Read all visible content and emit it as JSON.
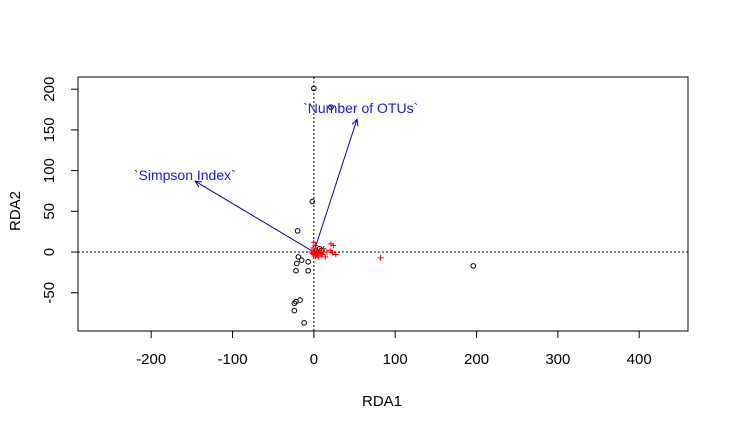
{
  "chart_data": {
    "type": "scatter",
    "title": "",
    "xlabel": "RDA1",
    "ylabel": "RDA2",
    "xlim": [
      -290,
      460
    ],
    "ylim": [
      -97,
      215
    ],
    "x_ticks": [
      -200,
      -100,
      0,
      100,
      200,
      300,
      400
    ],
    "y_ticks": [
      -50,
      0,
      50,
      100,
      150,
      200
    ],
    "x_tick_labels": [
      "-200",
      "-100",
      "0",
      "100",
      "200",
      "300",
      "400"
    ],
    "y_tick_labels": [
      "-50",
      "0",
      "50",
      "100",
      "150",
      "200"
    ],
    "reference_lines": {
      "x": 0,
      "y": 0,
      "style": "dotted"
    },
    "grid": false,
    "site_points": {
      "marker": "open-circle",
      "color": "#000000",
      "points": [
        [
          0,
          201
        ],
        [
          21,
          178
        ],
        [
          -2,
          62
        ],
        [
          -20,
          26
        ],
        [
          -19,
          -6
        ],
        [
          -15,
          -10
        ],
        [
          -7,
          -12
        ],
        [
          -21,
          -14
        ],
        [
          -22,
          -23
        ],
        [
          -7,
          -23
        ],
        [
          -17,
          -59
        ],
        [
          -22,
          -61
        ],
        [
          -24,
          -63
        ],
        [
          -24,
          -72
        ],
        [
          -12,
          -87
        ],
        [
          7,
          4
        ],
        [
          10,
          2
        ],
        [
          196,
          -17
        ]
      ]
    },
    "species_points": {
      "marker": "plus",
      "color": "#ff0000",
      "points": [
        [
          0,
          12
        ],
        [
          2,
          8
        ],
        [
          -1,
          5
        ],
        [
          3,
          3
        ],
        [
          1,
          1
        ],
        [
          5,
          0
        ],
        [
          8,
          -1
        ],
        [
          -2,
          -2
        ],
        [
          0,
          -3
        ],
        [
          4,
          -4
        ],
        [
          2,
          -5
        ],
        [
          6,
          -6
        ],
        [
          10,
          -3
        ],
        [
          12,
          4
        ],
        [
          16,
          0
        ],
        [
          20,
          2
        ],
        [
          23,
          -1
        ],
        [
          27,
          -3
        ],
        [
          21,
          10
        ],
        [
          24,
          8
        ],
        [
          82,
          -7
        ],
        [
          14,
          -6
        ],
        [
          3,
          -1
        ],
        [
          -3,
          0
        ],
        [
          7,
          2
        ],
        [
          9,
          -2
        ]
      ]
    },
    "biplot_arrows": [
      {
        "label": "`Number of OTUs`",
        "x": 53,
        "y": 163
      },
      {
        "label": "`Simpson Index`",
        "x": -146,
        "y": 87
      }
    ],
    "arrow_color": "#0000aa",
    "arrow_label_color": "#1a1ad0"
  }
}
